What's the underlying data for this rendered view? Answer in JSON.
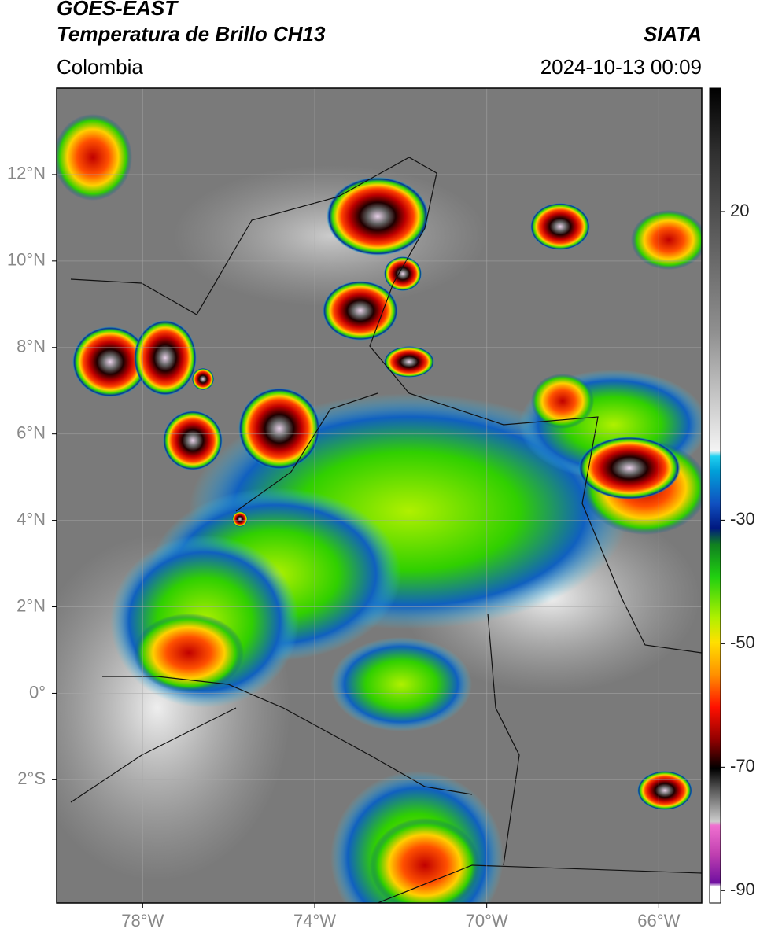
{
  "header": {
    "title": "GOES-EAST",
    "subtitle": "Temperatura de Brillo CH13",
    "source": "SIATA",
    "region": "Colombia",
    "datetime": "2024-10-13 00:09"
  },
  "map": {
    "xlim": [
      -80,
      -65
    ],
    "ylim": [
      -4.85,
      14
    ],
    "xticks": [
      {
        "value": -78,
        "label": "78°W"
      },
      {
        "value": -74,
        "label": "74°W"
      },
      {
        "value": -70,
        "label": "70°W"
      },
      {
        "value": -66,
        "label": "66°W"
      }
    ],
    "yticks": [
      {
        "value": 12,
        "label": "12°N"
      },
      {
        "value": 10,
        "label": "10°N"
      },
      {
        "value": 8,
        "label": "8°N"
      },
      {
        "value": 6,
        "label": "6°N"
      },
      {
        "value": 4,
        "label": "4°N"
      },
      {
        "value": 2,
        "label": "2°N"
      },
      {
        "value": 0,
        "label": "0°"
      },
      {
        "value": -2,
        "label": "2°S"
      }
    ],
    "grid": true
  },
  "colorbar": {
    "lim": [
      -92,
      40
    ],
    "ticks": [
      20,
      -30,
      -50,
      -70,
      -90
    ]
  }
}
